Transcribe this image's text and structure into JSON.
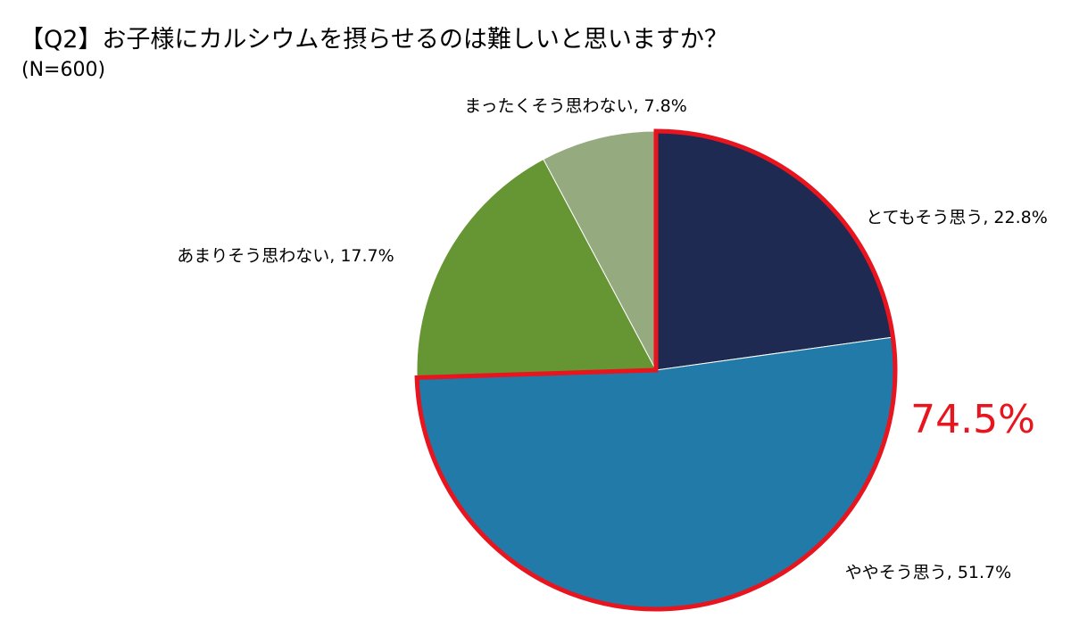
{
  "header": {
    "title": "【Q2】お子様にカルシウムを摂らせるのは難しいと思いますか？",
    "subtitle": "(N=600)"
  },
  "colors": {
    "highlight": "#e8141e"
  },
  "chart_data": {
    "type": "pie",
    "slices": [
      {
        "label": "とてもそう思う",
        "value": 22.8,
        "color": "#1e2a52",
        "display": "とてもそう思う, 22.8%"
      },
      {
        "label": "ややそう思う",
        "value": 51.7,
        "color": "#217aa8",
        "display": "ややそう思う, 51.7%"
      },
      {
        "label": "あまりそう思わない",
        "value": 17.7,
        "color": "#669533",
        "display": "あまりそう思わない, 17.7%"
      },
      {
        "label": "まったくそう思わない",
        "value": 7.8,
        "color": "#96aa80",
        "display": "まったくそう思わない, 7.8%"
      }
    ],
    "highlight": {
      "slices": [
        "とてもそう思う",
        "ややそう思う"
      ],
      "label": "74.5%"
    },
    "start_angle": "12 o'clock",
    "direction": "clockwise"
  }
}
